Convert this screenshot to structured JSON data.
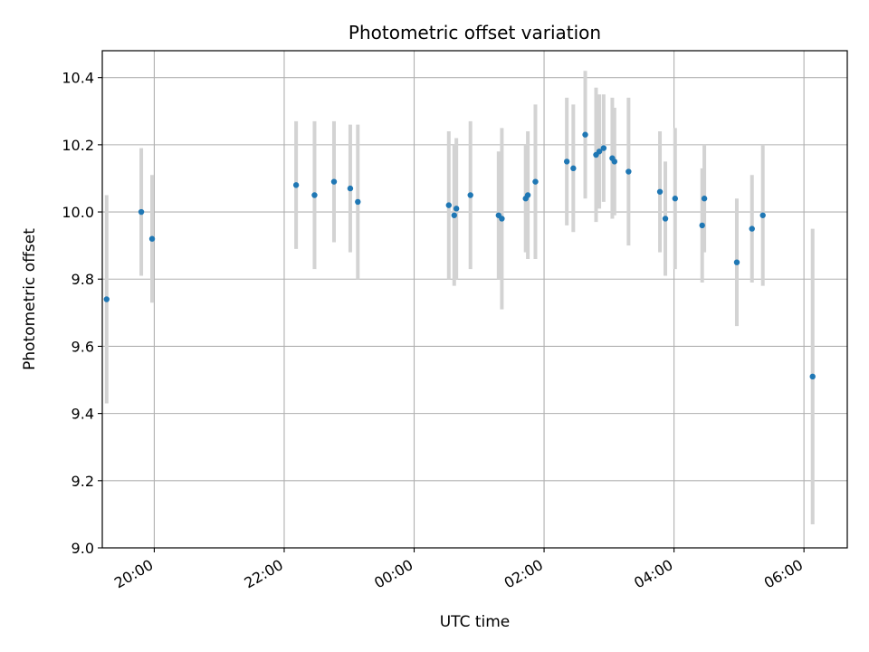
{
  "chart_data": {
    "type": "scatter",
    "title": "Photometric offset variation",
    "xlabel": "UTC time",
    "ylabel": "Photometric offset",
    "x_unit": "time of day (UTC)",
    "xlim": [
      "19:12",
      "06:40"
    ],
    "ylim": [
      9.0,
      10.48
    ],
    "grid": true,
    "legend": "none",
    "x_ticks": [
      "20:00",
      "22:00",
      "00:00",
      "02:00",
      "04:00",
      "06:00"
    ],
    "y_ticks": [
      "9.0",
      "9.2",
      "9.4",
      "9.6",
      "9.8",
      "10.0",
      "10.2",
      "10.4"
    ],
    "colors": {
      "marker": "#1f77b4",
      "errorbar": "#d3d3d3",
      "grid": "#b0b0b0"
    },
    "points": [
      {
        "x": "19:16",
        "y": 9.74,
        "err": 0.31
      },
      {
        "x": "19:48",
        "y": 10.0,
        "err": 0.19
      },
      {
        "x": "19:58",
        "y": 9.92,
        "err": 0.19
      },
      {
        "x": "22:11",
        "y": 10.08,
        "err": 0.19
      },
      {
        "x": "22:28",
        "y": 10.05,
        "err": 0.22
      },
      {
        "x": "22:46",
        "y": 10.09,
        "err": 0.18
      },
      {
        "x": "23:01",
        "y": 10.07,
        "err": 0.19
      },
      {
        "x": "23:08",
        "y": 10.03,
        "err": 0.23
      },
      {
        "x": "00:32",
        "y": 10.02,
        "err": 0.22
      },
      {
        "x": "00:37",
        "y": 9.99,
        "err": 0.21
      },
      {
        "x": "00:39",
        "y": 10.01,
        "err": 0.21
      },
      {
        "x": "00:52",
        "y": 10.05,
        "err": 0.22
      },
      {
        "x": "01:18",
        "y": 9.99,
        "err": 0.19
      },
      {
        "x": "01:21",
        "y": 9.98,
        "err": 0.27
      },
      {
        "x": "01:43",
        "y": 10.04,
        "err": 0.16
      },
      {
        "x": "01:45",
        "y": 10.05,
        "err": 0.19
      },
      {
        "x": "01:52",
        "y": 10.09,
        "err": 0.23
      },
      {
        "x": "02:21",
        "y": 10.15,
        "err": 0.19
      },
      {
        "x": "02:27",
        "y": 10.13,
        "err": 0.19
      },
      {
        "x": "02:38",
        "y": 10.23,
        "err": 0.19
      },
      {
        "x": "02:48",
        "y": 10.17,
        "err": 0.2
      },
      {
        "x": "02:51",
        "y": 10.18,
        "err": 0.17
      },
      {
        "x": "02:55",
        "y": 10.19,
        "err": 0.16
      },
      {
        "x": "03:03",
        "y": 10.16,
        "err": 0.18
      },
      {
        "x": "03:05",
        "y": 10.15,
        "err": 0.16
      },
      {
        "x": "03:18",
        "y": 10.12,
        "err": 0.22
      },
      {
        "x": "03:47",
        "y": 10.06,
        "err": 0.18
      },
      {
        "x": "03:52",
        "y": 9.98,
        "err": 0.17
      },
      {
        "x": "04:01",
        "y": 10.04,
        "err": 0.21
      },
      {
        "x": "04:26",
        "y": 9.96,
        "err": 0.17
      },
      {
        "x": "04:28",
        "y": 10.04,
        "err": 0.16
      },
      {
        "x": "04:58",
        "y": 9.85,
        "err": 0.19
      },
      {
        "x": "05:12",
        "y": 9.95,
        "err": 0.16
      },
      {
        "x": "05:22",
        "y": 9.99,
        "err": 0.21
      },
      {
        "x": "06:08",
        "y": 9.51,
        "err": 0.44
      }
    ]
  }
}
